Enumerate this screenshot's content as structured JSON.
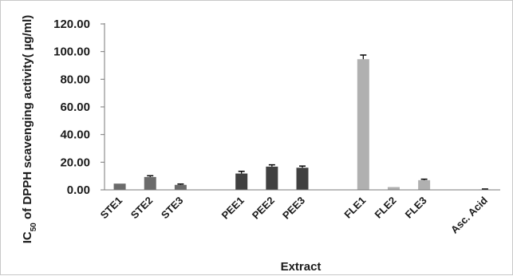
{
  "chart_data": {
    "type": "bar",
    "xlabel": "Extract",
    "ylabel": "IC₅₀ of DPPH scavenging activity( µg/ml)",
    "ylim": [
      0,
      120
    ],
    "yticks": [
      "0.00",
      "20.00",
      "40.00",
      "60.00",
      "80.00",
      "100.00",
      "120.00"
    ],
    "grid": false,
    "legend": "none",
    "categories": [
      "STE1",
      "STE2",
      "STE3",
      "",
      "PEE1",
      "PEE2",
      "PEE3",
      "",
      "FLE1",
      "FLE2",
      "FLE3",
      "",
      "Asc. Acid"
    ],
    "values": [
      4.5,
      9.3,
      3.6,
      null,
      11.8,
      16.8,
      16.0,
      null,
      94.5,
      2.0,
      7.0,
      null,
      0.3
    ],
    "errors": [
      0.0,
      0.9,
      0.6,
      null,
      1.6,
      1.3,
      1.2,
      null,
      3.0,
      0.0,
      0.7,
      null,
      0.3
    ],
    "colors": [
      "#6b6b6b",
      "#6b6b6b",
      "#6b6b6b",
      null,
      "#404040",
      "#404040",
      "#404040",
      null,
      "#b0b0b0",
      "#b0b0b0",
      "#b0b0b0",
      null,
      "#303030"
    ]
  }
}
